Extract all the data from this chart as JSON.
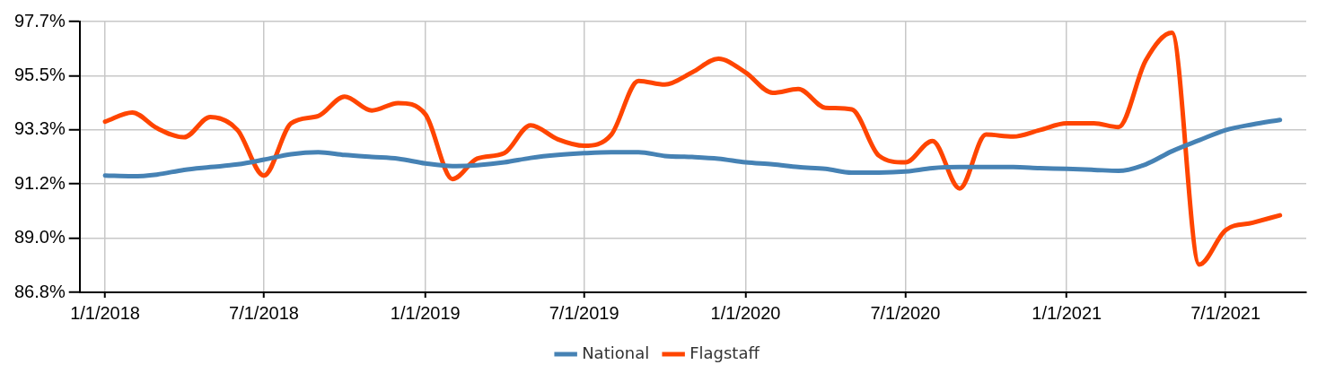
{
  "chart_data": {
    "type": "line",
    "x": [
      "2018-01",
      "2018-02",
      "2018-03",
      "2018-04",
      "2018-05",
      "2018-06",
      "2018-07",
      "2018-08",
      "2018-09",
      "2018-10",
      "2018-11",
      "2018-12",
      "2019-01",
      "2019-02",
      "2019-03",
      "2019-04",
      "2019-05",
      "2019-06",
      "2019-07",
      "2019-08",
      "2019-09",
      "2019-10",
      "2019-11",
      "2019-12",
      "2020-01",
      "2020-02",
      "2020-03",
      "2020-04",
      "2020-05",
      "2020-06",
      "2020-07",
      "2020-08",
      "2020-09",
      "2020-10",
      "2020-11",
      "2020-12",
      "2021-01",
      "2021-02",
      "2021-03",
      "2021-04",
      "2021-05",
      "2021-06",
      "2021-07",
      "2021-08",
      "2021-09"
    ],
    "series": [
      {
        "name": "National",
        "color": "#4682b4",
        "values": [
          91.5,
          91.47,
          91.54,
          91.73,
          91.84,
          91.95,
          92.14,
          92.36,
          92.44,
          92.33,
          92.25,
          92.18,
          91.99,
          91.88,
          91.92,
          92.03,
          92.21,
          92.33,
          92.4,
          92.44,
          92.44,
          92.29,
          92.25,
          92.18,
          92.03,
          91.95,
          91.84,
          91.77,
          91.62,
          91.62,
          91.66,
          91.8,
          91.84,
          91.84,
          91.84,
          91.8,
          91.77,
          91.73,
          91.69,
          91.95,
          92.48,
          92.92,
          93.33,
          93.56,
          93.74
        ]
      },
      {
        "name": "Flagstaff",
        "color": "#ff4500",
        "values": [
          93.67,
          94.04,
          93.41,
          93.04,
          93.86,
          93.33,
          91.5,
          93.6,
          93.9,
          94.68,
          94.12,
          94.42,
          93.97,
          91.36,
          92.18,
          92.4,
          93.52,
          92.96,
          92.7,
          93.15,
          95.31,
          95.16,
          95.65,
          96.2,
          95.65,
          94.83,
          94.98,
          94.23,
          94.16,
          92.3,
          92.03,
          92.89,
          90.98,
          93.15,
          93.07,
          93.33,
          93.6,
          93.6,
          93.45,
          96.13,
          97.25,
          87.92,
          89.3,
          89.6,
          89.9
        ]
      }
    ],
    "xlim": [
      "2017-12-03",
      "2021-10-01"
    ],
    "xticks": [
      {
        "value": "2018-01-01",
        "label": "1/1/2018"
      },
      {
        "value": "2018-07-01",
        "label": "7/1/2018"
      },
      {
        "value": "2019-01-01",
        "label": "1/1/2019"
      },
      {
        "value": "2019-07-01",
        "label": "7/1/2019"
      },
      {
        "value": "2020-01-01",
        "label": "1/1/2020"
      },
      {
        "value": "2020-07-01",
        "label": "7/1/2020"
      },
      {
        "value": "2021-01-01",
        "label": "1/1/2021"
      },
      {
        "value": "2021-07-01",
        "label": "7/1/2021"
      }
    ],
    "ylim": [
      86.8,
      97.7
    ],
    "yticks": [
      {
        "value": 86.8,
        "label": "86.8%"
      },
      {
        "value": 88.98,
        "label": "89.0%"
      },
      {
        "value": 91.16,
        "label": "91.2%"
      },
      {
        "value": 93.34,
        "label": "93.3%"
      },
      {
        "value": 95.52,
        "label": "95.5%"
      },
      {
        "value": 97.7,
        "label": "97.7%"
      }
    ],
    "grid": true,
    "legend": "bottom",
    "marker": "none",
    "line_style": "solid"
  }
}
